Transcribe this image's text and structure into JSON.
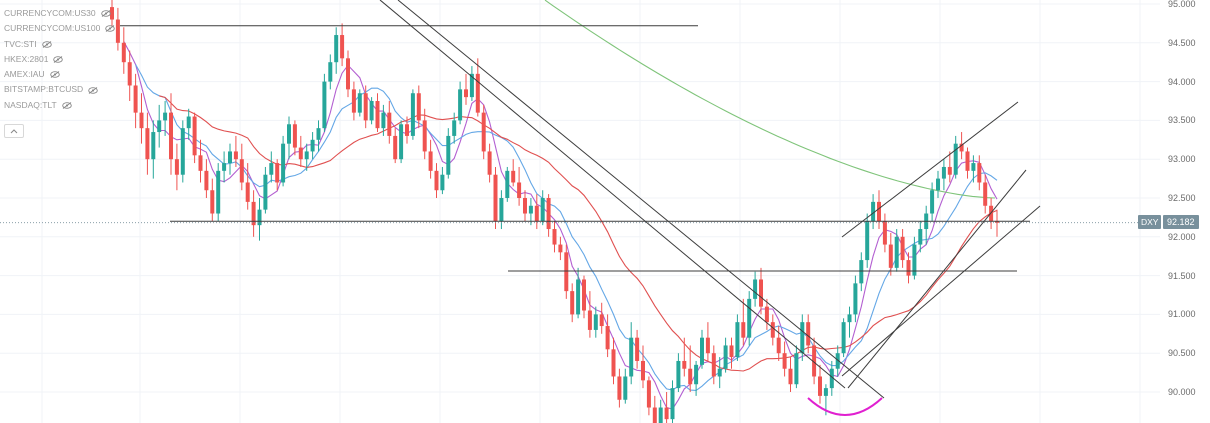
{
  "legend": {
    "items": [
      "CURRENCYCOM:US30",
      "CURRENCYCOM:US100",
      "TVC:STI",
      "HKEX:2801",
      "AMEX:IAU",
      "BITSTAMP:BTCUSD",
      "NASDAQ:TLT"
    ]
  },
  "price_axis": {
    "ticks": [
      "95.000",
      "94.500",
      "94.000",
      "93.500",
      "93.000",
      "92.500",
      "92.000",
      "91.500",
      "91.000",
      "90.500",
      "90.000"
    ]
  },
  "last_price": {
    "symbol": "DXY",
    "value": "92.182"
  },
  "colors": {
    "candle_up": "#26a69a",
    "candle_down": "#ef5350",
    "ma_blue": "#64a7e6",
    "ma_purple": "#b35fd1",
    "ma_red": "#e05050",
    "ma_green": "#7fc47a",
    "trendline": "#3c3c3c",
    "arc": "#e020d0",
    "badge": "#78909c"
  },
  "chart_data": {
    "type": "candlestick",
    "symbol": "DXY",
    "y_scale": "linear",
    "ylim": [
      89.6,
      95.05
    ],
    "grid": true,
    "last_price": 92.182,
    "ohlc": [
      [
        94.96,
        95.1,
        94.7,
        94.8
      ],
      [
        94.8,
        94.95,
        94.4,
        94.5
      ],
      [
        94.5,
        94.7,
        94.1,
        94.25
      ],
      [
        94.25,
        94.4,
        93.75,
        93.95
      ],
      [
        93.95,
        94.1,
        93.4,
        93.6
      ],
      [
        93.6,
        93.85,
        93.2,
        93.4
      ],
      [
        93.4,
        93.6,
        92.8,
        93.0
      ],
      [
        93.0,
        93.5,
        92.75,
        93.35
      ],
      [
        93.35,
        93.7,
        93.15,
        93.5
      ],
      [
        93.5,
        93.75,
        93.3,
        93.6
      ],
      [
        93.6,
        93.85,
        92.8,
        93.0
      ],
      [
        93.0,
        93.2,
        92.6,
        92.8
      ],
      [
        92.8,
        93.5,
        92.7,
        93.4
      ],
      [
        93.4,
        93.65,
        93.25,
        93.55
      ],
      [
        93.55,
        93.6,
        92.95,
        93.05
      ],
      [
        93.05,
        93.25,
        92.7,
        92.85
      ],
      [
        92.85,
        93.0,
        92.5,
        92.6
      ],
      [
        92.6,
        92.75,
        92.2,
        92.3
      ],
      [
        92.3,
        92.95,
        92.2,
        92.85
      ],
      [
        92.85,
        93.1,
        92.7,
        92.95
      ],
      [
        92.95,
        93.2,
        92.8,
        93.1
      ],
      [
        93.1,
        93.3,
        92.9,
        93.0
      ],
      [
        93.0,
        93.2,
        92.6,
        92.7
      ],
      [
        92.7,
        92.95,
        92.35,
        92.45
      ],
      [
        92.45,
        92.6,
        92.0,
        92.15
      ],
      [
        92.15,
        92.5,
        91.95,
        92.35
      ],
      [
        92.35,
        92.9,
        92.3,
        92.8
      ],
      [
        92.8,
        93.1,
        92.7,
        92.95
      ],
      [
        92.95,
        93.0,
        92.6,
        92.7
      ],
      [
        92.7,
        93.3,
        92.65,
        93.2
      ],
      [
        93.2,
        93.55,
        93.0,
        93.45
      ],
      [
        93.45,
        93.5,
        93.05,
        93.15
      ],
      [
        93.15,
        93.3,
        92.9,
        93.0
      ],
      [
        93.0,
        93.2,
        92.85,
        93.1
      ],
      [
        93.1,
        93.35,
        93.0,
        93.25
      ],
      [
        93.25,
        93.5,
        93.1,
        93.4
      ],
      [
        93.4,
        94.1,
        93.35,
        94.0
      ],
      [
        94.0,
        94.35,
        93.9,
        94.25
      ],
      [
        94.25,
        94.7,
        94.1,
        94.6
      ],
      [
        94.6,
        94.75,
        94.2,
        94.3
      ],
      [
        94.3,
        94.4,
        93.8,
        93.9
      ],
      [
        93.9,
        94.0,
        93.5,
        93.6
      ],
      [
        93.6,
        93.9,
        93.55,
        93.85
      ],
      [
        93.85,
        93.95,
        93.4,
        93.5
      ],
      [
        93.5,
        93.8,
        93.45,
        93.75
      ],
      [
        93.75,
        93.85,
        93.35,
        93.4
      ],
      [
        93.4,
        93.7,
        93.3,
        93.6
      ],
      [
        93.6,
        93.75,
        93.2,
        93.3
      ],
      [
        93.3,
        93.4,
        92.95,
        93.0
      ],
      [
        93.0,
        93.5,
        92.95,
        93.45
      ],
      [
        93.45,
        93.55,
        93.2,
        93.3
      ],
      [
        93.3,
        93.9,
        93.25,
        93.85
      ],
      [
        93.85,
        93.95,
        93.4,
        93.5
      ],
      [
        93.5,
        93.65,
        93.0,
        93.1
      ],
      [
        93.1,
        93.25,
        92.75,
        92.85
      ],
      [
        92.85,
        92.95,
        92.5,
        92.6
      ],
      [
        92.6,
        92.9,
        92.55,
        92.8
      ],
      [
        92.8,
        93.4,
        92.75,
        93.3
      ],
      [
        93.3,
        93.6,
        93.2,
        93.5
      ],
      [
        93.5,
        94.0,
        93.45,
        93.9
      ],
      [
        93.9,
        94.1,
        93.7,
        93.8
      ],
      [
        93.8,
        94.2,
        93.75,
        94.1
      ],
      [
        94.1,
        94.3,
        93.55,
        93.6
      ],
      [
        93.6,
        93.7,
        93.0,
        93.1
      ],
      [
        93.1,
        93.2,
        92.7,
        92.8
      ],
      [
        92.8,
        92.9,
        92.1,
        92.2
      ],
      [
        92.2,
        92.6,
        92.1,
        92.5
      ],
      [
        92.5,
        92.9,
        92.45,
        92.85
      ],
      [
        92.85,
        93.0,
        92.65,
        92.7
      ],
      [
        92.7,
        92.9,
        92.4,
        92.5
      ],
      [
        92.5,
        92.6,
        92.2,
        92.3
      ],
      [
        92.3,
        92.5,
        92.15,
        92.4
      ],
      [
        92.4,
        92.55,
        92.1,
        92.2
      ],
      [
        92.2,
        92.6,
        92.15,
        92.5
      ],
      [
        92.5,
        92.55,
        92.0,
        92.1
      ],
      [
        92.1,
        92.2,
        91.8,
        91.9
      ],
      [
        91.9,
        92.0,
        91.7,
        91.8
      ],
      [
        91.8,
        91.9,
        91.2,
        91.3
      ],
      [
        91.3,
        91.4,
        90.9,
        91.0
      ],
      [
        91.0,
        91.6,
        90.95,
        91.45
      ],
      [
        91.45,
        91.5,
        90.95,
        91.05
      ],
      [
        91.05,
        91.3,
        90.7,
        90.8
      ],
      [
        90.8,
        91.1,
        90.7,
        91.0
      ],
      [
        91.0,
        91.15,
        90.75,
        90.85
      ],
      [
        90.85,
        91.0,
        90.45,
        90.55
      ],
      [
        90.55,
        90.7,
        90.1,
        90.2
      ],
      [
        90.2,
        90.3,
        89.8,
        89.9
      ],
      [
        89.9,
        90.3,
        89.85,
        90.2
      ],
      [
        90.2,
        90.9,
        90.1,
        90.7
      ],
      [
        90.7,
        90.8,
        90.3,
        90.4
      ],
      [
        90.4,
        90.6,
        90.05,
        90.15
      ],
      [
        90.15,
        90.2,
        89.7,
        89.8
      ],
      [
        89.8,
        89.95,
        89.5,
        89.6
      ],
      [
        89.6,
        89.9,
        89.4,
        89.8
      ],
      [
        89.8,
        90.0,
        89.55,
        89.65
      ],
      [
        89.65,
        90.15,
        89.6,
        90.05
      ],
      [
        90.05,
        90.5,
        90.0,
        90.4
      ],
      [
        90.4,
        90.7,
        90.2,
        90.3
      ],
      [
        90.3,
        90.6,
        90.0,
        90.1
      ],
      [
        90.1,
        90.4,
        89.95,
        90.35
      ],
      [
        90.35,
        90.8,
        90.3,
        90.7
      ],
      [
        90.7,
        90.9,
        90.4,
        90.5
      ],
      [
        90.5,
        90.6,
        90.1,
        90.2
      ],
      [
        90.2,
        90.45,
        90.05,
        90.3
      ],
      [
        90.3,
        90.7,
        90.25,
        90.6
      ],
      [
        90.6,
        90.7,
        90.3,
        90.45
      ],
      [
        90.45,
        91.0,
        90.4,
        90.9
      ],
      [
        90.9,
        91.2,
        90.6,
        90.7
      ],
      [
        90.7,
        91.3,
        90.6,
        91.2
      ],
      [
        91.2,
        91.55,
        91.1,
        91.45
      ],
      [
        91.45,
        91.6,
        91.0,
        91.1
      ],
      [
        91.1,
        91.2,
        90.8,
        90.9
      ],
      [
        90.9,
        91.0,
        90.6,
        90.7
      ],
      [
        90.7,
        90.85,
        90.4,
        90.5
      ],
      [
        90.5,
        90.65,
        90.2,
        90.3
      ],
      [
        90.3,
        90.45,
        90.0,
        90.1
      ],
      [
        90.1,
        90.6,
        90.05,
        90.5
      ],
      [
        90.5,
        91.0,
        90.4,
        90.9
      ],
      [
        90.9,
        91.0,
        90.5,
        90.6
      ],
      [
        90.6,
        90.7,
        90.1,
        90.2
      ],
      [
        90.2,
        90.35,
        89.85,
        89.95
      ],
      [
        89.95,
        90.1,
        89.7,
        90.05
      ],
      [
        90.05,
        90.4,
        89.95,
        90.3
      ],
      [
        90.3,
        90.6,
        90.2,
        90.5
      ],
      [
        90.5,
        90.95,
        90.45,
        90.9
      ],
      [
        90.9,
        91.1,
        90.7,
        91.0
      ],
      [
        91.0,
        91.5,
        90.9,
        91.4
      ],
      [
        91.4,
        91.8,
        91.3,
        91.7
      ],
      [
        91.7,
        92.3,
        91.6,
        92.2
      ],
      [
        92.2,
        92.55,
        92.1,
        92.45
      ],
      [
        92.45,
        92.6,
        92.1,
        92.2
      ],
      [
        92.2,
        92.3,
        91.8,
        91.9
      ],
      [
        91.9,
        92.05,
        91.5,
        91.6
      ],
      [
        91.6,
        92.1,
        91.55,
        92.0
      ],
      [
        92.0,
        92.1,
        91.6,
        91.7
      ],
      [
        91.7,
        91.8,
        91.4,
        91.5
      ],
      [
        91.5,
        92.0,
        91.45,
        91.9
      ],
      [
        91.9,
        92.2,
        91.8,
        92.1
      ],
      [
        92.1,
        92.4,
        91.9,
        92.3
      ],
      [
        92.3,
        92.7,
        92.2,
        92.6
      ],
      [
        92.6,
        92.85,
        92.5,
        92.75
      ],
      [
        92.75,
        93.0,
        92.6,
        92.9
      ],
      [
        92.9,
        93.1,
        92.7,
        92.8
      ],
      [
        92.8,
        93.3,
        92.75,
        93.2
      ],
      [
        93.2,
        93.35,
        93.0,
        93.1
      ],
      [
        93.1,
        93.15,
        92.75,
        92.85
      ],
      [
        92.85,
        93.05,
        92.7,
        92.95
      ],
      [
        92.95,
        93.05,
        92.6,
        92.7
      ],
      [
        92.7,
        92.8,
        92.3,
        92.4
      ],
      [
        92.4,
        92.5,
        92.1,
        92.2
      ],
      [
        92.2,
        92.35,
        92.0,
        92.18
      ]
    ],
    "moving_averages": [
      "blue",
      "purple",
      "red",
      "green"
    ],
    "horizontal_lines": [
      94.72,
      92.2,
      91.56
    ],
    "trendlines": 7
  }
}
